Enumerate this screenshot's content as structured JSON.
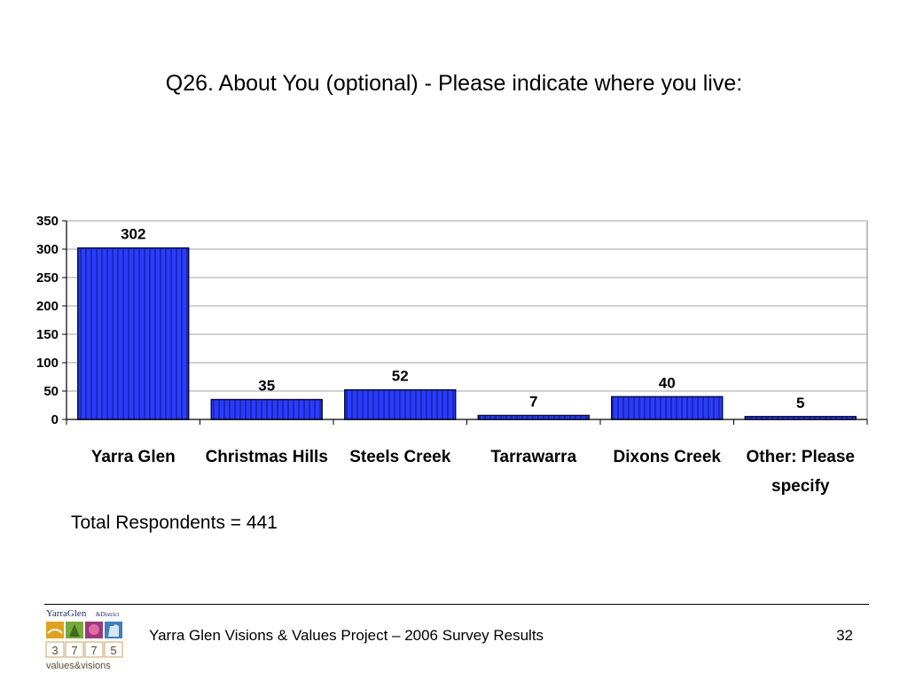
{
  "slide": {
    "title": "Q26. About You (optional) - Please indicate where you live:",
    "total_respondents": "Total Respondents = 441",
    "footer_text": "Yarra Glen Visions & Values Project – 2006 Survey Results",
    "page_number": "32",
    "logo": {
      "top_text": "YarraGlen",
      "top_suffix": "&District",
      "digits": [
        "3",
        "7",
        "7",
        "5"
      ],
      "bottom_text": "values&visions"
    }
  },
  "chart_data": {
    "type": "bar",
    "title": "",
    "xlabel": "",
    "ylabel": "",
    "categories": [
      "Yarra Glen",
      "Christmas Hills",
      "Steels Creek",
      "Tarrawarra",
      "Dixons Creek",
      "Other: Please specify"
    ],
    "values": [
      302,
      35,
      52,
      7,
      40,
      5
    ],
    "data_labels": [
      "302",
      "35",
      "52",
      "7",
      "40",
      "5"
    ],
    "ylim": [
      0,
      350
    ],
    "yticks": [
      0,
      50,
      100,
      150,
      200,
      250,
      300,
      350
    ],
    "grid": true,
    "legend": "none",
    "colors": {
      "bar_fill": "#2a3cff",
      "bar_stripe": "#14197a",
      "bar_edge": "#0a0d40",
      "grid": "#a0a0a0"
    }
  }
}
